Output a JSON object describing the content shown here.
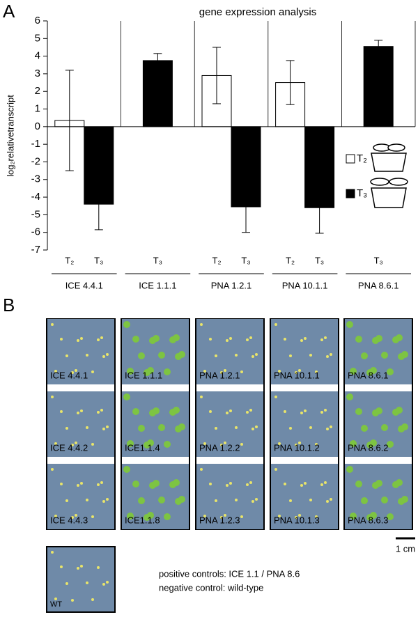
{
  "chart_data": {
    "type": "bar",
    "panel_label": "A",
    "title": "gene expression analysis",
    "y_label": "log₂relativetranscript",
    "categories": [
      "ICE 4.4.1",
      "ICE 1.1.1",
      "PNA 1.2.1",
      "PNA 10.1.1",
      "PNA 8.6.1"
    ],
    "series": [
      {
        "name": "T₂",
        "color": "#ffffff",
        "values": [
          0.35,
          null,
          2.9,
          2.5,
          null
        ],
        "errors": [
          2.85,
          null,
          1.6,
          1.25,
          null
        ]
      },
      {
        "name": "T₃",
        "color": "#000000",
        "values": [
          -4.4,
          3.75,
          -4.55,
          -4.6,
          4.55
        ],
        "errors": [
          1.45,
          0.4,
          1.45,
          1.45,
          0.35
        ]
      }
    ],
    "ylim": [
      -7,
      6
    ],
    "yticks": [
      -7,
      -6,
      -5,
      -4,
      -3,
      -2,
      -1,
      0,
      1,
      2,
      3,
      4,
      5,
      6
    ],
    "grid": false,
    "legend": "right"
  },
  "panel_b": {
    "label": "B",
    "columns": [
      [
        "ICE 4.4.1",
        "ICE 4.4.2",
        "ICE 4.4.3"
      ],
      [
        "ICE 1.1.1",
        "ICE1.1.4",
        "ICE1.1.8"
      ],
      [
        "PNA 1.2.1",
        "PNA 1.2.2",
        "PNA 1.2.3"
      ],
      [
        "PNA 10.1.1",
        "PNA 10.1.2",
        "PNA 10.1.3"
      ],
      [
        "PNA 8.6.1",
        "PNA 8.6.2",
        "PNA 8.6.3"
      ]
    ],
    "scale": "1 cm",
    "wt": "WT",
    "notes": [
      "positive controls: ICE 1.1 / PNA 8.6",
      "negative control: wild-type"
    ]
  }
}
